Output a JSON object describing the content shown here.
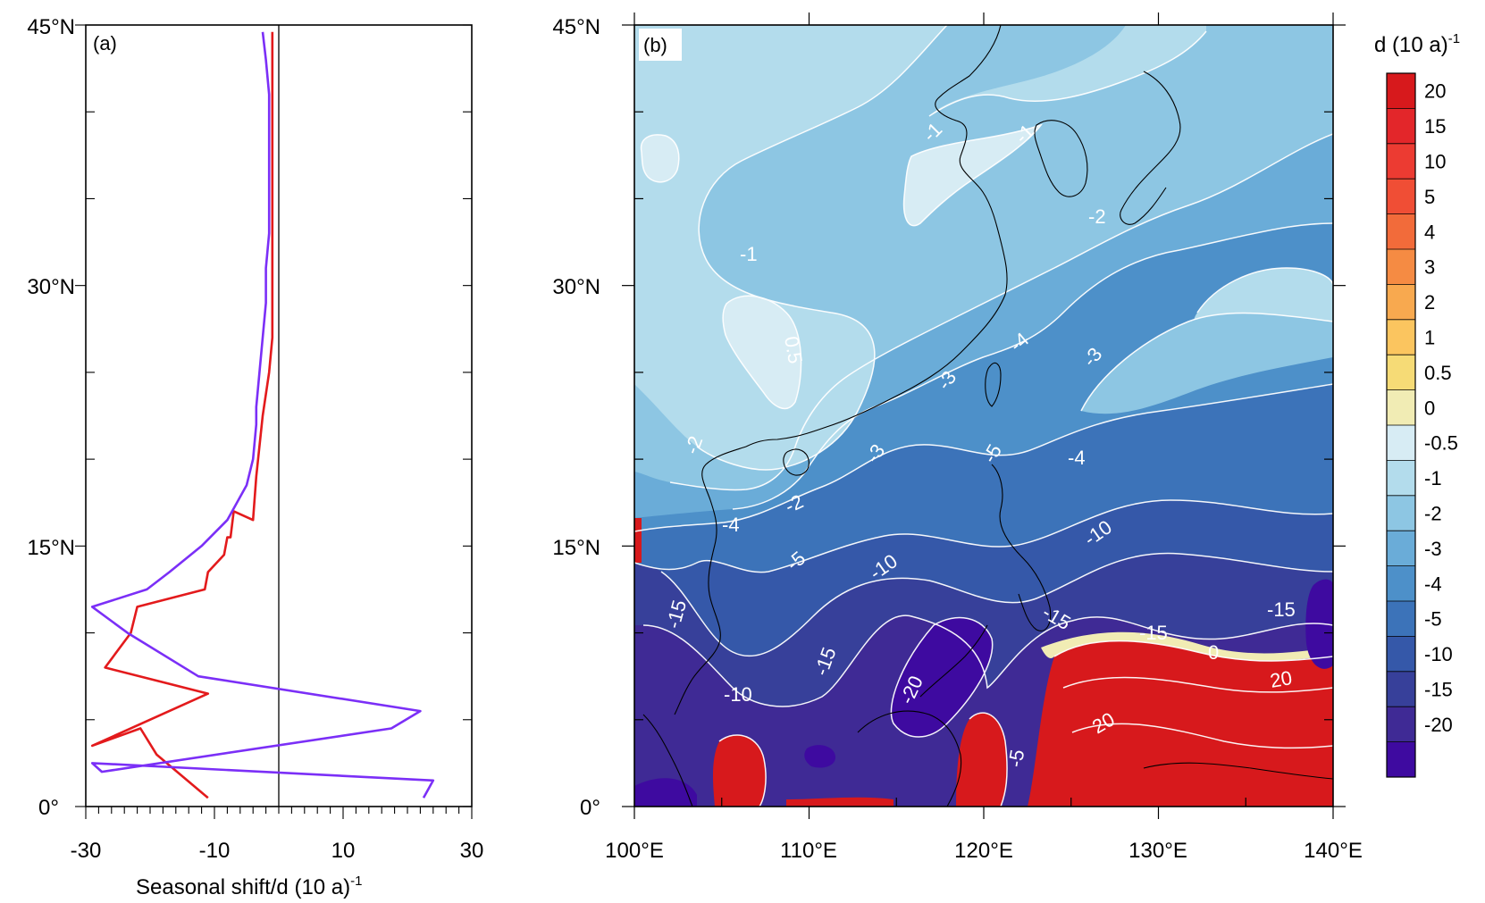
{
  "panels": {
    "a": {
      "label": "(a)",
      "xlabel": "Seasonal shift/d (10 a)",
      "xlabel_sup": "-1",
      "xticks": [
        "-30",
        "-10",
        "10",
        "30"
      ],
      "yticks": [
        "0°",
        "15°N",
        "30°N",
        "45°N"
      ]
    },
    "b": {
      "label": "(b)",
      "xticks": [
        "100°E",
        "110°E",
        "120°E",
        "130°E",
        "140°E"
      ],
      "yticks": [
        "0°",
        "15°N",
        "30°N",
        "45°N"
      ],
      "contour_labels": [
        "-1",
        "-1",
        "-1",
        "-2",
        "-2",
        "-2",
        "-3",
        "-3",
        "-3",
        "-4",
        "-4",
        "-4",
        "-5",
        "-5",
        "-5",
        "0.5",
        "-10",
        "-10",
        "-10",
        "-15",
        "-15",
        "-15",
        "-15",
        "-15",
        "-20",
        "20",
        "20",
        "0"
      ]
    },
    "colorbar": {
      "title": "d (10 a)",
      "title_sup": "-1",
      "labels": [
        "20",
        "15",
        "10",
        "5",
        "4",
        "3",
        "2",
        "1",
        "0.5",
        "0",
        "-0.5",
        "-1",
        "-2",
        "-3",
        "-4",
        "-5",
        "-10",
        "-15",
        "-20"
      ],
      "colors": [
        "#d7191c",
        "#e3262a",
        "#ec3b32",
        "#f04e35",
        "#f26b3a",
        "#f58b43",
        "#f8a94f",
        "#fbc55f",
        "#f6db76",
        "#f1ecb4",
        "#d7ecf4",
        "#b3dcec",
        "#8dc6e3",
        "#6aacd8",
        "#4d90c9",
        "#3c73b9",
        "#3558a9",
        "#37409a",
        "#3f2a95",
        "#3e0aa0"
      ]
    }
  },
  "chart_data": [
    {
      "type": "line",
      "xlabel": "Seasonal shift/d (10 a)^-1",
      "xlim": [
        -30,
        30
      ],
      "ylim": [
        0,
        45
      ],
      "series": [
        {
          "color": "#e31a1c",
          "points": [
            [
              -11,
              0.5
            ],
            [
              -19,
              3
            ],
            [
              -21.5,
              4.5
            ],
            [
              -29,
              3.5
            ],
            [
              -11,
              6.5
            ],
            [
              -27,
              8
            ],
            [
              -23,
              10
            ],
            [
              -22,
              11.5
            ],
            [
              -11.5,
              12.5
            ],
            [
              -11,
              13.5
            ],
            [
              -8.5,
              14.5
            ],
            [
              -8,
              15.5
            ],
            [
              -7.5,
              15.5
            ],
            [
              -7,
              17
            ],
            [
              -4,
              16.5
            ],
            [
              -3.5,
              19
            ],
            [
              -2.5,
              22.5
            ],
            [
              -1.5,
              25
            ],
            [
              -1,
              27
            ],
            [
              -1,
              29
            ],
            [
              -1,
              31
            ],
            [
              -1,
              33
            ],
            [
              -1,
              35
            ],
            [
              -1,
              37
            ],
            [
              -1,
              39
            ],
            [
              -1,
              41
            ],
            [
              -1,
              43
            ],
            [
              -1,
              44.6
            ]
          ]
        },
        {
          "color": "#7b2ff7",
          "points": [
            [
              22.5,
              0.5
            ],
            [
              24,
              1.5
            ],
            [
              -29,
              2.5
            ],
            [
              -27.5,
              2
            ],
            [
              17.5,
              4.5
            ],
            [
              22,
              5.5
            ],
            [
              -12.5,
              7.5
            ],
            [
              -23.5,
              10
            ],
            [
              -29,
              11.5
            ],
            [
              -20.5,
              12.5
            ],
            [
              -17,
              13.5
            ],
            [
              -12,
              15
            ],
            [
              -8,
              16.5
            ],
            [
              -6.5,
              17.5
            ],
            [
              -5,
              18.5
            ],
            [
              -4,
              20
            ],
            [
              -3.5,
              22
            ],
            [
              -3.5,
              23
            ],
            [
              -3,
              25
            ],
            [
              -2.5,
              27
            ],
            [
              -2,
              29
            ],
            [
              -2,
              31
            ],
            [
              -1.5,
              33
            ],
            [
              -1.5,
              35
            ],
            [
              -1.5,
              37
            ],
            [
              -1.5,
              39
            ],
            [
              -1.5,
              41
            ],
            [
              -2,
              43
            ],
            [
              -2.5,
              44.6
            ]
          ]
        }
      ]
    },
    {
      "type": "heatmap",
      "xlabel": "longitude",
      "ylabel": "latitude",
      "xlim": [
        100,
        140
      ],
      "ylim": [
        0,
        45
      ],
      "levels": [
        -20,
        -15,
        -10,
        -5,
        -4,
        -3,
        -2,
        -1,
        -0.5,
        0,
        0.5,
        1,
        2,
        3,
        4,
        5,
        10,
        15,
        20
      ]
    }
  ]
}
